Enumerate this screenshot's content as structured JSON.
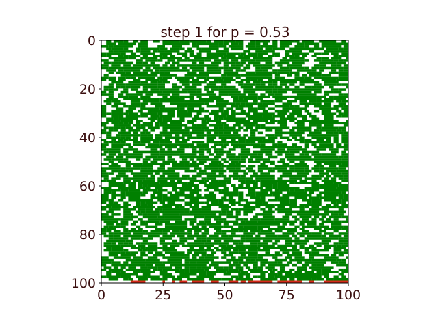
{
  "chart_data": {
    "type": "heatmap",
    "title": "step 1 for p = 0.53",
    "grid_size": 101,
    "p": 0.53,
    "step": 1,
    "random_seed": 20231101,
    "xlim": [
      0,
      100
    ],
    "ylim": [
      100,
      0
    ],
    "x_ticks": [
      "0",
      "25",
      "50",
      "75",
      "100"
    ],
    "y_ticks": [
      "0",
      "20",
      "40",
      "60",
      "80",
      "100"
    ],
    "x_tick_values": [
      0,
      25,
      50,
      75,
      100
    ],
    "y_tick_values": [
      0,
      20,
      40,
      60,
      80,
      100
    ],
    "colors": {
      "occupied": "#008000",
      "empty": "#ffffff",
      "burning": "#d62b1a",
      "text": "#3a0f0f",
      "frame": "#000000"
    },
    "burning_row": 100,
    "burning_columns": [
      12,
      13,
      14,
      15,
      16,
      17,
      25,
      29,
      32,
      33,
      34,
      37,
      38,
      39,
      40,
      41,
      45,
      46,
      47,
      52,
      53,
      54,
      55,
      57,
      58,
      60,
      61,
      62,
      63,
      64,
      65,
      66,
      67,
      68,
      69,
      72,
      73,
      74,
      75,
      76,
      77,
      78,
      79,
      80,
      81,
      85,
      86,
      91,
      92,
      93,
      94,
      95,
      96,
      97,
      98,
      99,
      100
    ],
    "grid": false
  }
}
